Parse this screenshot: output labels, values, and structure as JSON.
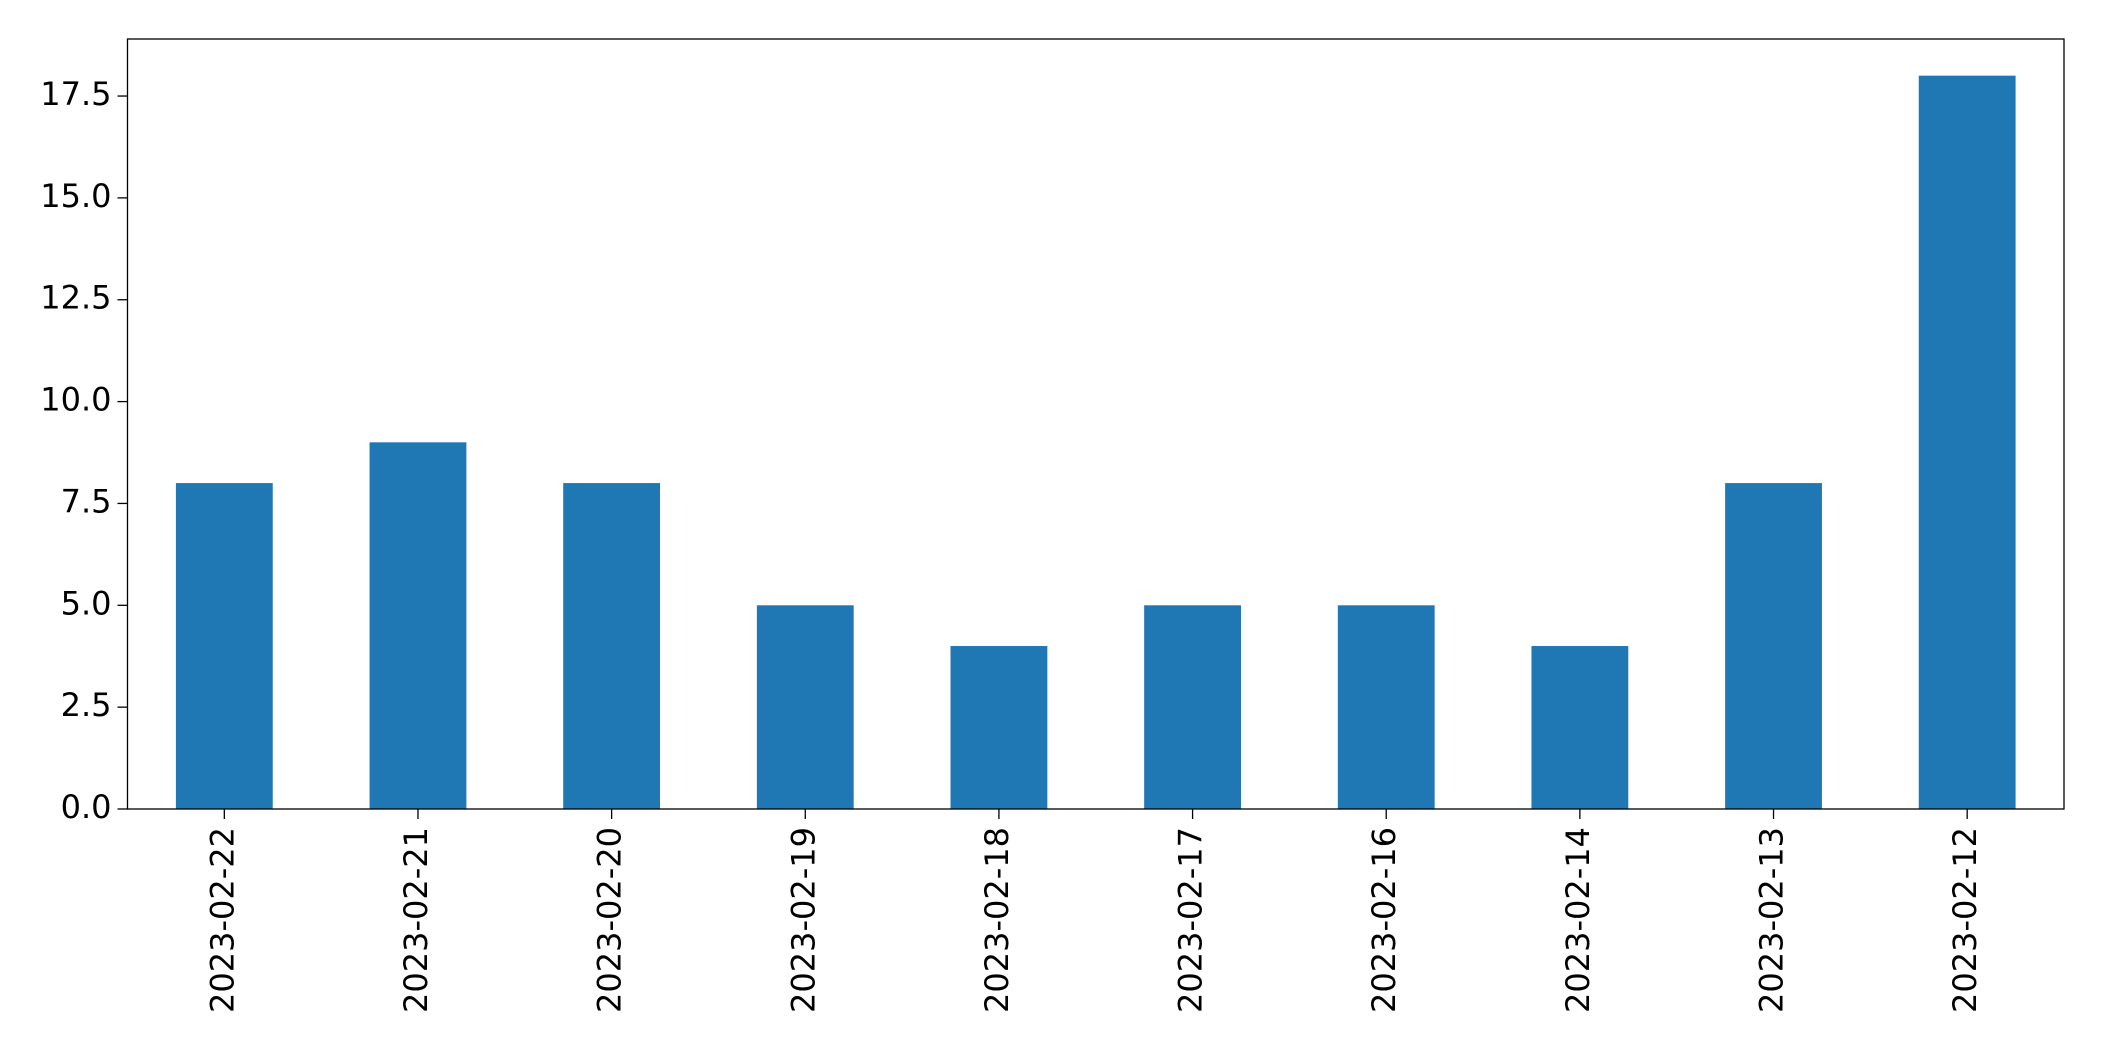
{
  "chart_data": {
    "type": "bar",
    "categories": [
      "2023-02-22",
      "2023-02-21",
      "2023-02-20",
      "2023-02-19",
      "2023-02-18",
      "2023-02-17",
      "2023-02-16",
      "2023-02-14",
      "2023-02-13",
      "2023-02-12"
    ],
    "values": [
      8,
      9,
      8,
      5,
      4,
      5,
      5,
      4,
      8,
      18
    ],
    "color": "#1f77b4",
    "ylim": [
      0,
      18.9
    ],
    "yticks": [
      {
        "value": 0,
        "label": "0.0"
      },
      2.5,
      {
        "value": 5,
        "label": "5.0"
      },
      7.5,
      {
        "value": 10,
        "label": "10.0"
      },
      12.5,
      {
        "value": 15,
        "label": "15.0"
      },
      17.5
    ],
    "grid": false
  }
}
